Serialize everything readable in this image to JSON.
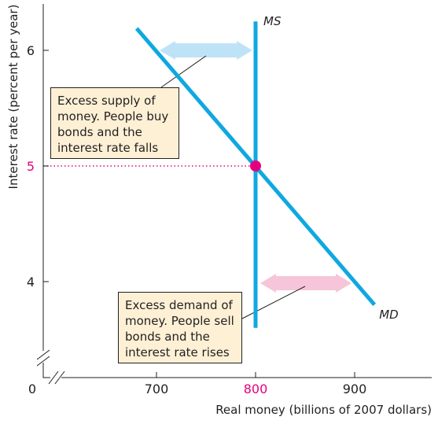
{
  "chart_data": {
    "type": "line",
    "xlabel": "Real money (billions of 2007 dollars)",
    "ylabel": "Interest rate (percent per year)",
    "origin_label": "0",
    "x_ticks": [
      "700",
      "800",
      "900"
    ],
    "y_ticks": [
      "4",
      "5",
      "6"
    ],
    "series": [
      {
        "name": "MS",
        "points": [
          [
            800,
            3.6
          ],
          [
            800,
            6.25
          ]
        ]
      },
      {
        "name": "MD",
        "points": [
          [
            680,
            6.19
          ],
          [
            920,
            3.8
          ]
        ]
      }
    ],
    "equilibrium": {
      "x": 800,
      "y": 5,
      "x_label": "800",
      "y_label": "5"
    },
    "annotations": [
      {
        "name": "excess-supply",
        "lines": [
          "Excess supply of",
          "money. People buy",
          "bonds and the",
          "interest rate falls"
        ],
        "arrow": {
          "y": 6,
          "x_from": 700,
          "x_to": 800
        }
      },
      {
        "name": "excess-demand",
        "lines": [
          "Excess demand of",
          "money. People sell",
          "bonds and the",
          "interest rate rises"
        ],
        "arrow": {
          "y": 4,
          "x_from": 800,
          "x_to": 900
        }
      }
    ],
    "colors": {
      "curve": "#0fa8e0",
      "excess_supply_arrow": "#bfe3f6",
      "excess_demand_arrow": "#f6c5da",
      "equilibrium": "#e5007e",
      "callout_bg": "#fdf0d5",
      "axis": "#231f20"
    }
  }
}
